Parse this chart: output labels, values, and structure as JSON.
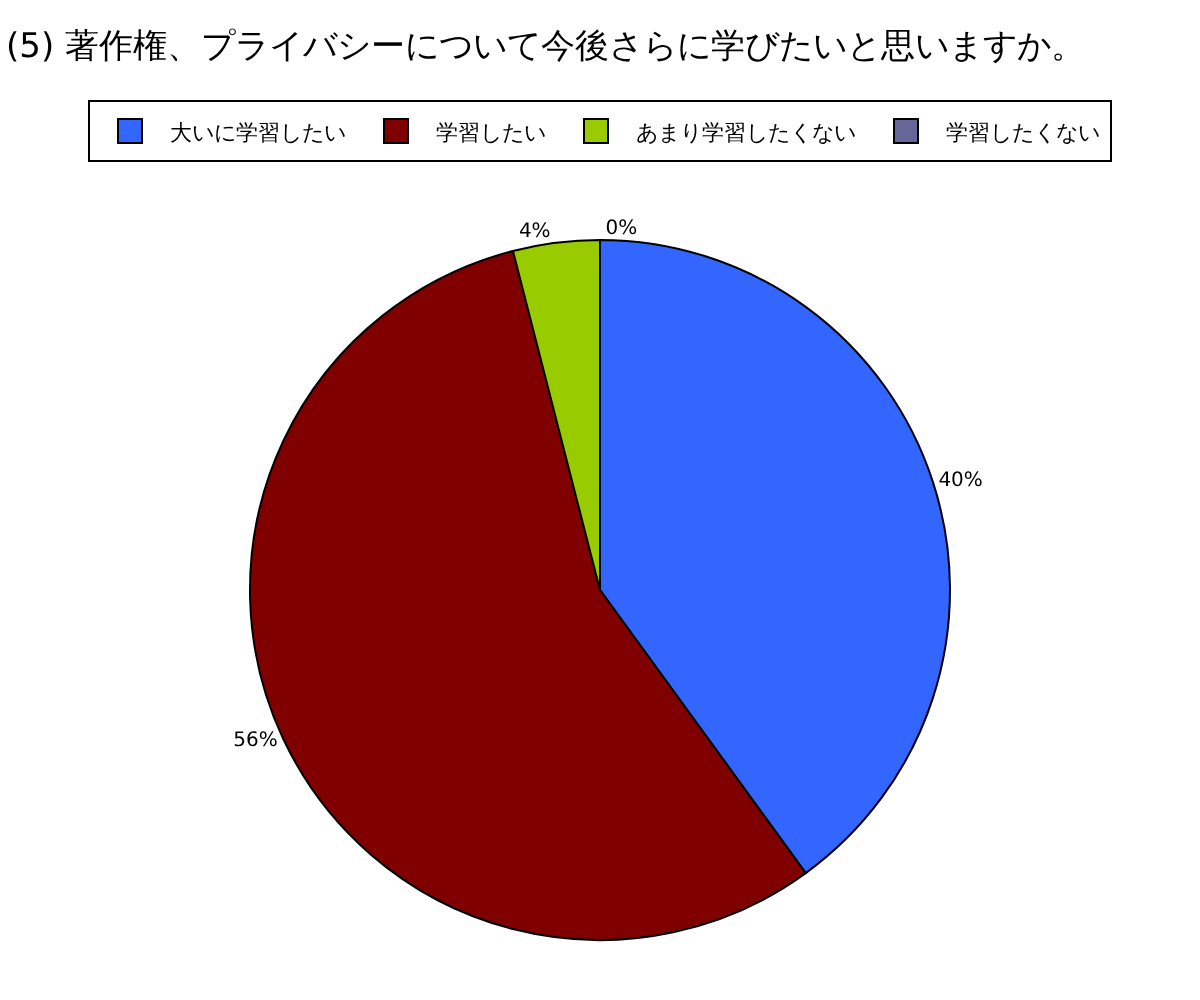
{
  "chart_data": {
    "type": "pie",
    "title": "(5) 著作権、プライバシーについて今後さらに学びたいと思いますか。",
    "categories": [
      "大いに学習したい",
      "学習したい",
      "あまり学習したくない",
      "学習したくない"
    ],
    "values": [
      40,
      56,
      4,
      0
    ],
    "colors": [
      "#3366ff",
      "#800000",
      "#99cc00",
      "#666699"
    ],
    "value_labels": [
      "40%",
      "56%",
      "4%",
      "0%"
    ],
    "legend": "top"
  }
}
